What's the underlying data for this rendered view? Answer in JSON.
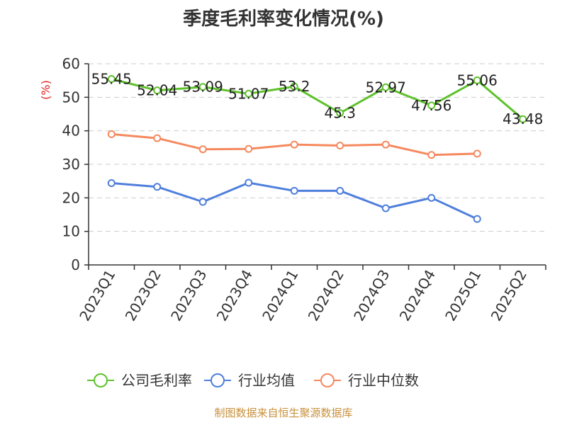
{
  "chart_data": {
    "type": "line",
    "title": "季度毛利率变化情况(%)",
    "ylabel": "(%)",
    "xlabel": "",
    "ylim": [
      0,
      60
    ],
    "yticks": [
      0,
      10,
      20,
      30,
      40,
      50,
      60
    ],
    "grid": true,
    "legend_position": "bottom",
    "categories": [
      "2023Q1",
      "2023Q2",
      "2023Q3",
      "2023Q4",
      "2024Q1",
      "2024Q2",
      "2024Q3",
      "2024Q4",
      "2025Q1",
      "2025Q2"
    ],
    "series": [
      {
        "name": "公司毛利率",
        "color": "#5ec22b",
        "values": [
          55.45,
          52.04,
          53.09,
          51.07,
          53.2,
          45.3,
          52.97,
          47.56,
          55.06,
          43.48
        ],
        "labels": [
          "55.45",
          "52.04",
          "53.09",
          "51.07",
          "53.2",
          "45.3",
          "52.97",
          "47.56",
          "55.06",
          "43.48"
        ]
      },
      {
        "name": "行业均值",
        "color": "#4f7fdc",
        "values": [
          24.4,
          23.3,
          18.8,
          24.5,
          22.1,
          22.1,
          16.9,
          20.0,
          13.7,
          null
        ]
      },
      {
        "name": "行业中位数",
        "color": "#f5895f",
        "values": [
          39.0,
          37.8,
          34.5,
          34.6,
          35.9,
          35.6,
          35.9,
          32.8,
          33.2,
          null
        ]
      }
    ]
  },
  "footer": {
    "source": "制图数据来自恒生聚源数据库"
  }
}
